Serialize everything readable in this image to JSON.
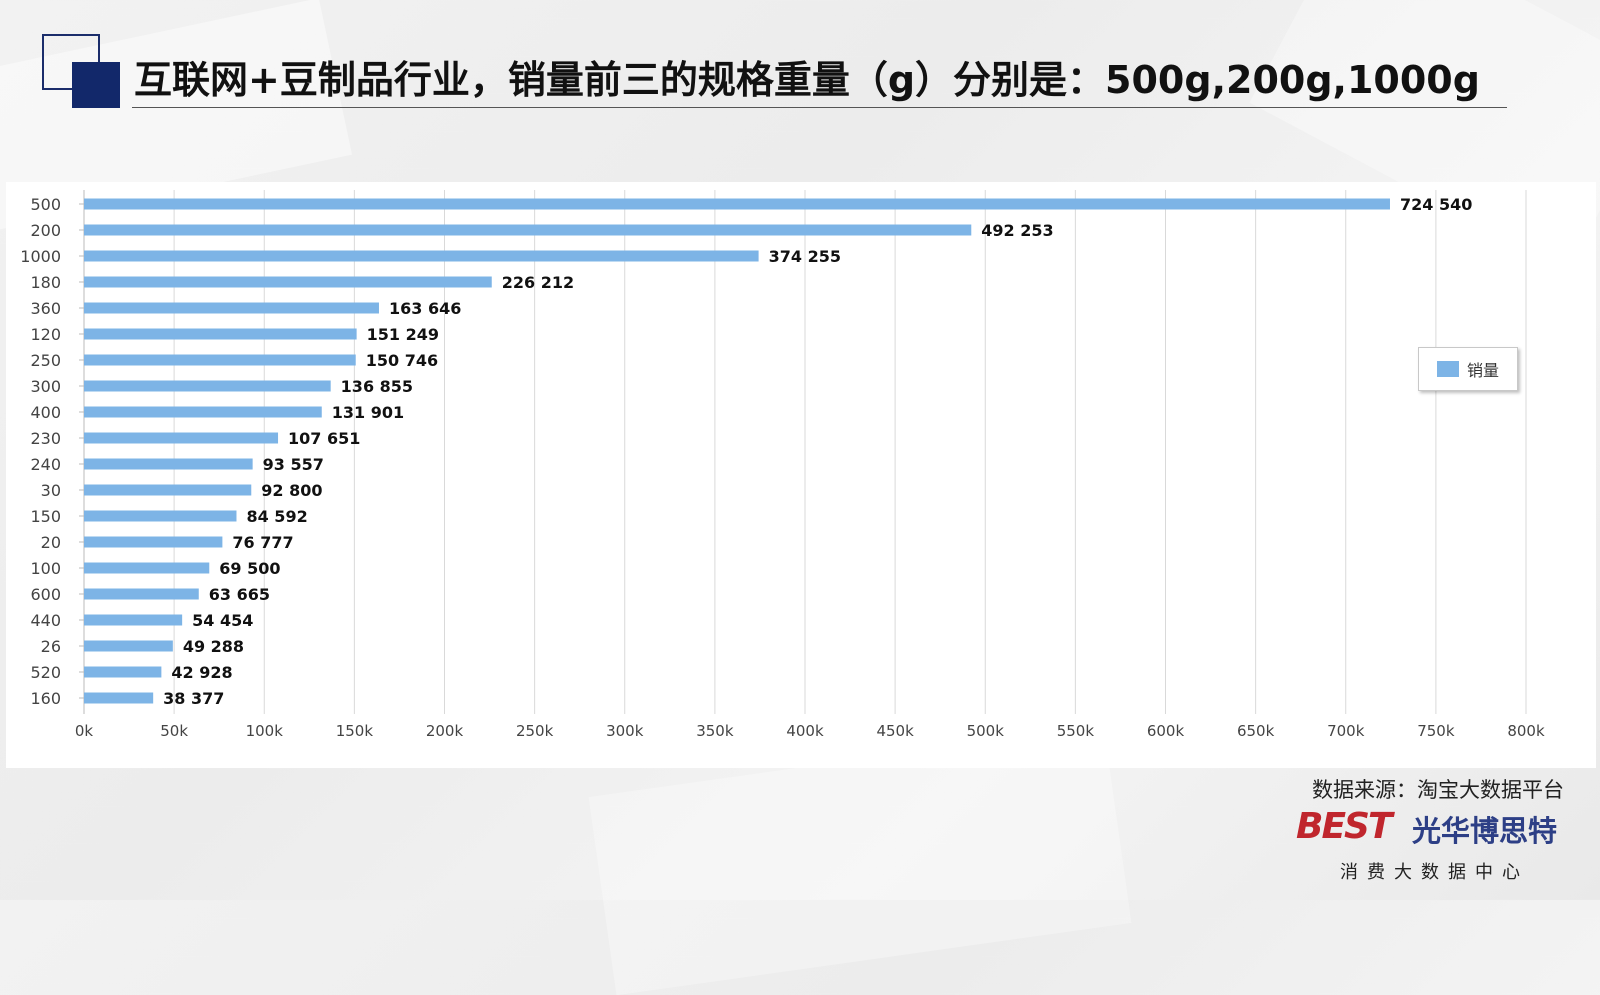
{
  "title": "互联网+豆制品行业，销量前三的规格重量（g）分别是：500g,200g,1000g",
  "source": "数据来源：淘宝大数据平台",
  "logo": {
    "mark": "BEST",
    "name": "光华博思特",
    "sub": "消费大数据中心"
  },
  "colors": {
    "bar": "#7db4e6",
    "accent": "#12286a"
  },
  "chart_data": {
    "type": "bar",
    "orientation": "horizontal",
    "categories": [
      "500",
      "200",
      "1000",
      "180",
      "360",
      "120",
      "250",
      "300",
      "400",
      "230",
      "240",
      "30",
      "150",
      "20",
      "100",
      "600",
      "440",
      "26",
      "520",
      "160"
    ],
    "series": [
      {
        "name": "销量",
        "values": [
          724540,
          492253,
          374255,
          226212,
          163646,
          151249,
          150746,
          136855,
          131901,
          107651,
          93557,
          92800,
          84592,
          76777,
          69500,
          63665,
          54454,
          49288,
          42928,
          38377
        ]
      }
    ],
    "value_labels": [
      "724 540",
      "492 253",
      "374 255",
      "226 212",
      "163 646",
      "151 249",
      "150 746",
      "136 855",
      "131 901",
      "107 651",
      "93 557",
      "92 800",
      "84 592",
      "76 777",
      "69 500",
      "63 665",
      "54 454",
      "49 288",
      "42 928",
      "38 377"
    ],
    "xticks": [
      "0k",
      "50k",
      "100k",
      "150k",
      "200k",
      "250k",
      "300k",
      "350k",
      "400k",
      "450k",
      "500k",
      "550k",
      "600k",
      "650k",
      "700k",
      "750k",
      "800k"
    ],
    "xlim": [
      0,
      800000
    ],
    "grid": true,
    "legend": "right"
  }
}
